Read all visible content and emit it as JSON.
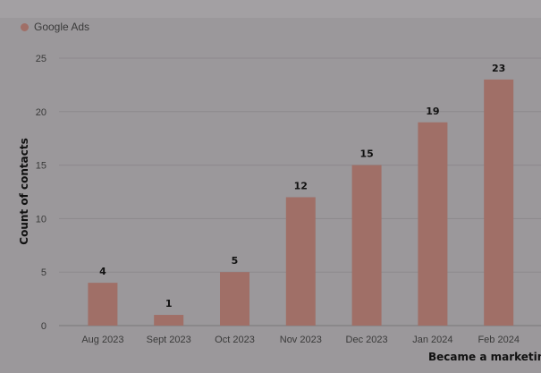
{
  "colors": {
    "background": "#9b989b",
    "bar": "#a06f67",
    "grid": "#8c898c",
    "axis": "#7a777a"
  },
  "legend": {
    "label": "Google Ads",
    "color": "#a06f67"
  },
  "chart_data": {
    "type": "bar",
    "title": "",
    "categories": [
      "Aug 2023",
      "Sept 2023",
      "Oct 2023",
      "Nov 2023",
      "Dec 2023",
      "Jan 2024",
      "Feb 2024"
    ],
    "series": [
      {
        "name": "Google Ads",
        "values": [
          4,
          1,
          5,
          12,
          15,
          19,
          23
        ]
      }
    ],
    "xlabel": "Became a marketing",
    "ylabel": "Count of contacts",
    "ylim": [
      0,
      25
    ],
    "yticks": [
      0,
      5,
      10,
      15,
      20,
      25
    ],
    "grid": true,
    "data_labels": true,
    "legend_position": "top-left"
  }
}
